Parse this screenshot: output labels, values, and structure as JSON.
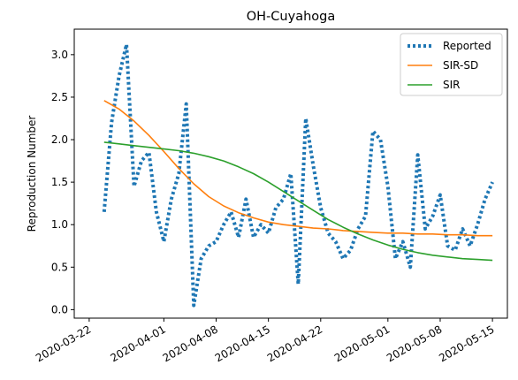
{
  "chart_data": {
    "type": "line",
    "title": "OH-Cuyahoga",
    "xlabel": "",
    "ylabel": "Reproduction Number",
    "x_type": "date",
    "xlim": [
      "2020-03-20",
      "2020-05-17"
    ],
    "ylim": [
      -0.1,
      3.3
    ],
    "x_ticks": [
      "2020-03-22",
      "2020-04-01",
      "2020-04-08",
      "2020-04-15",
      "2020-04-22",
      "2020-05-01",
      "2020-05-08",
      "2020-05-15"
    ],
    "y_ticks": [
      0.0,
      0.5,
      1.0,
      1.5,
      2.0,
      2.5,
      3.0
    ],
    "y_tick_labels": [
      "0.0",
      "0.5",
      "1.0",
      "1.5",
      "2.0",
      "2.5",
      "3.0"
    ],
    "grid": false,
    "legend_position": "top-right",
    "series": [
      {
        "name": "Reported",
        "style": "dotted",
        "color": "#1f77b4",
        "x": [
          "2020-03-24",
          "2020-03-25",
          "2020-03-26",
          "2020-03-27",
          "2020-03-28",
          "2020-03-29",
          "2020-03-30",
          "2020-03-31",
          "2020-04-01",
          "2020-04-02",
          "2020-04-03",
          "2020-04-04",
          "2020-04-05",
          "2020-04-06",
          "2020-04-07",
          "2020-04-08",
          "2020-04-09",
          "2020-04-10",
          "2020-04-11",
          "2020-04-12",
          "2020-04-13",
          "2020-04-14",
          "2020-04-15",
          "2020-04-16",
          "2020-04-17",
          "2020-04-18",
          "2020-04-19",
          "2020-04-20",
          "2020-04-21",
          "2020-04-22",
          "2020-04-23",
          "2020-04-24",
          "2020-04-25",
          "2020-04-26",
          "2020-04-27",
          "2020-04-28",
          "2020-04-29",
          "2020-04-30",
          "2020-05-01",
          "2020-05-02",
          "2020-05-03",
          "2020-05-04",
          "2020-05-05",
          "2020-05-06",
          "2020-05-07",
          "2020-05-08",
          "2020-05-09",
          "2020-05-10",
          "2020-05-11",
          "2020-05-12",
          "2020-05-13",
          "2020-05-14",
          "2020-05-15"
        ],
        "y": [
          1.15,
          2.2,
          2.75,
          3.12,
          1.45,
          1.75,
          1.85,
          1.15,
          0.8,
          1.3,
          1.6,
          2.42,
          0.05,
          0.6,
          0.75,
          0.8,
          1.0,
          1.15,
          0.85,
          1.3,
          0.85,
          1.0,
          0.9,
          1.2,
          1.3,
          1.6,
          0.3,
          2.25,
          1.7,
          1.2,
          0.9,
          0.8,
          0.6,
          0.7,
          0.95,
          1.1,
          2.1,
          2.0,
          1.45,
          0.6,
          0.8,
          0.5,
          1.82,
          0.95,
          1.1,
          1.35,
          0.75,
          0.7,
          0.95,
          0.75,
          1.0,
          1.3,
          1.5
        ]
      },
      {
        "name": "SIR-SD",
        "style": "solid",
        "color": "#ff7f0e",
        "x": [
          "2020-03-24",
          "2020-03-26",
          "2020-03-28",
          "2020-03-30",
          "2020-04-01",
          "2020-04-03",
          "2020-04-05",
          "2020-04-07",
          "2020-04-09",
          "2020-04-11",
          "2020-04-13",
          "2020-04-15",
          "2020-04-17",
          "2020-04-19",
          "2020-04-21",
          "2020-04-23",
          "2020-04-25",
          "2020-04-27",
          "2020-04-29",
          "2020-05-01",
          "2020-05-03",
          "2020-05-05",
          "2020-05-07",
          "2020-05-09",
          "2020-05-11",
          "2020-05-13",
          "2020-05-15"
        ],
        "y": [
          2.46,
          2.36,
          2.22,
          2.05,
          1.86,
          1.66,
          1.48,
          1.33,
          1.22,
          1.14,
          1.08,
          1.03,
          1.0,
          0.98,
          0.96,
          0.95,
          0.93,
          0.92,
          0.91,
          0.9,
          0.9,
          0.89,
          0.89,
          0.88,
          0.88,
          0.87,
          0.87
        ]
      },
      {
        "name": "SIR",
        "style": "solid",
        "color": "#2ca02c",
        "x": [
          "2020-03-24",
          "2020-03-26",
          "2020-03-28",
          "2020-03-30",
          "2020-04-01",
          "2020-04-03",
          "2020-04-05",
          "2020-04-07",
          "2020-04-09",
          "2020-04-11",
          "2020-04-13",
          "2020-04-15",
          "2020-04-17",
          "2020-04-19",
          "2020-04-21",
          "2020-04-23",
          "2020-04-25",
          "2020-04-27",
          "2020-04-29",
          "2020-05-01",
          "2020-05-03",
          "2020-05-05",
          "2020-05-07",
          "2020-05-09",
          "2020-05-11",
          "2020-05-13",
          "2020-05-15"
        ],
        "y": [
          1.97,
          1.95,
          1.93,
          1.91,
          1.89,
          1.87,
          1.84,
          1.8,
          1.75,
          1.68,
          1.6,
          1.5,
          1.39,
          1.28,
          1.17,
          1.06,
          0.97,
          0.89,
          0.82,
          0.76,
          0.71,
          0.67,
          0.64,
          0.62,
          0.6,
          0.59,
          0.58
        ]
      }
    ]
  }
}
